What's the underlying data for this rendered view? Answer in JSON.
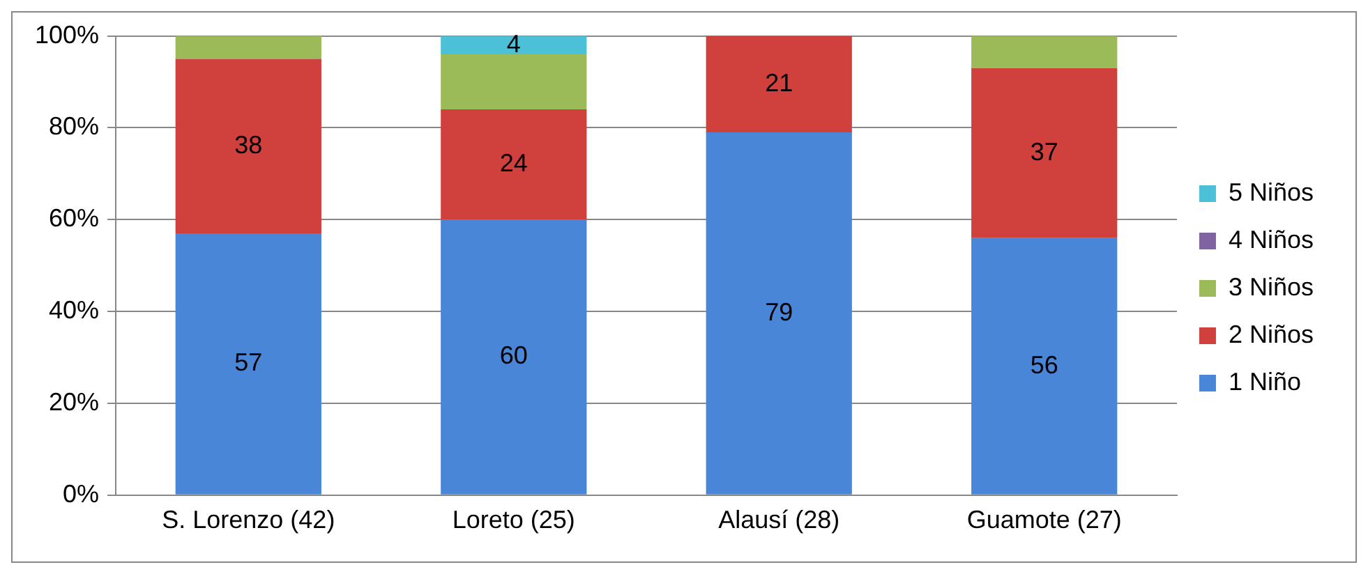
{
  "chart_data": {
    "type": "bar",
    "stacked": true,
    "categories": [
      "S. Lorenzo (42)",
      "Loreto (25)",
      "Alausí (28)",
      "Guamote (27)"
    ],
    "series": [
      {
        "name": "1 Niño",
        "color": "#4a86d8",
        "values": [
          57,
          60,
          79,
          56
        ],
        "value_labels": [
          "57",
          "60",
          "79",
          "56"
        ]
      },
      {
        "name": "2 Niños",
        "color": "#d0403d",
        "values": [
          38,
          24,
          21,
          37
        ],
        "value_labels": [
          "38",
          "24",
          "21",
          "37"
        ]
      },
      {
        "name": "3 Niños",
        "color": "#9bbb59",
        "values": [
          5,
          12,
          null,
          7
        ],
        "value_labels": [
          null,
          null,
          null,
          null
        ]
      },
      {
        "name": "4 Niños",
        "color": "#8064a2",
        "values": [
          null,
          null,
          null,
          null
        ],
        "value_labels": [
          null,
          null,
          null,
          null
        ]
      },
      {
        "name": "5 Niños",
        "color": "#4bc0d6",
        "values": [
          null,
          4,
          null,
          null
        ],
        "value_labels": [
          null,
          "4",
          null,
          null
        ]
      }
    ],
    "ylim": [
      0,
      100
    ],
    "yticks": [
      {
        "value": 0,
        "label": "0%"
      },
      {
        "value": 20,
        "label": "20%"
      },
      {
        "value": 40,
        "label": "40%"
      },
      {
        "value": 60,
        "label": "60%"
      },
      {
        "value": 80,
        "label": "80%"
      },
      {
        "value": 100,
        "label": "100%"
      }
    ],
    "grid": "y",
    "legend": "right"
  }
}
